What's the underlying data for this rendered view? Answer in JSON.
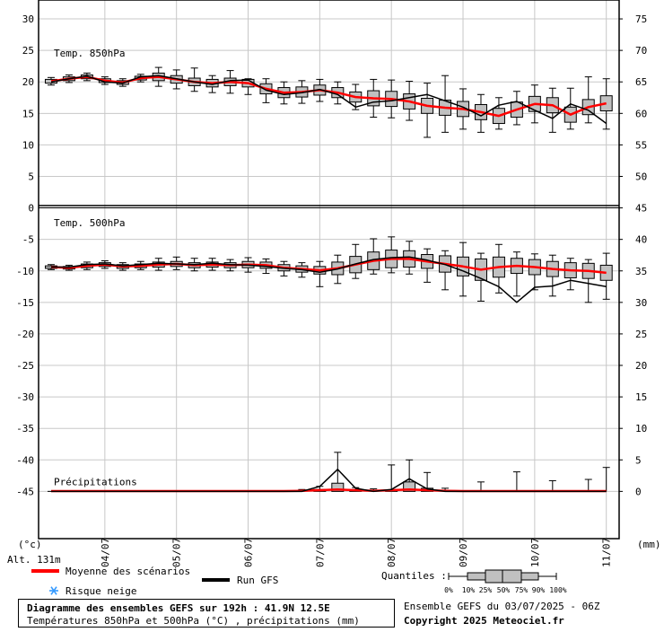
{
  "chart_data": {
    "type": "ensemble-boxplot",
    "title": "Diagramme des ensembles GEFS sur 192h : 41.9N 12.5E",
    "subtitle": "Températures 850hPa et 500hPa (°C) , précipitations (mm)",
    "run_info": "Ensemble GEFS du 03/07/2025 - 06Z",
    "copyright": "Copyright 2025 Meteociel.fr",
    "y_label": "(°c)",
    "y2_label": "(mm)",
    "altitude": "Alt. 131m",
    "legend": {
      "mean": "Moyenne des scénarios",
      "gfs": "Run GFS",
      "snow": "Risque neige",
      "quantiles_title": "Quantiles :",
      "quantiles": [
        "0%",
        "10%",
        "25%",
        "50%",
        "75%",
        "90%",
        "100%"
      ]
    },
    "mean_color": "#ff0000",
    "gfs_color": "#000000",
    "box_color": "#c0c0c0",
    "grid": true,
    "x": [
      0,
      6,
      12,
      18,
      24,
      30,
      36,
      42,
      48,
      54,
      60,
      66,
      72,
      78,
      84,
      90,
      96,
      102,
      108,
      114,
      120,
      126,
      132,
      138,
      144,
      150,
      156,
      162,
      168,
      174,
      180,
      186
    ],
    "xlim": [
      -4.2,
      190.3
    ],
    "xticks": [
      {
        "value": 18,
        "label": "04/07"
      },
      {
        "value": 42,
        "label": "05/07"
      },
      {
        "value": 66,
        "label": "06/07"
      },
      {
        "value": 90,
        "label": "07/07"
      },
      {
        "value": 114,
        "label": "08/07"
      },
      {
        "value": 138,
        "label": "09/07"
      },
      {
        "value": 162,
        "label": "10/07"
      },
      {
        "value": 186,
        "label": "11/07"
      }
    ],
    "ylim": [
      -52.5,
      33
    ],
    "yticks": [
      -45,
      -40,
      -35,
      -30,
      -25,
      -20,
      -15,
      -10,
      -5,
      0,
      5,
      10,
      15,
      20,
      25,
      30
    ],
    "y2lim": [
      -7.5,
      78
    ],
    "y2ticks": [
      0,
      5,
      10,
      15,
      20,
      25,
      30,
      35,
      40,
      45,
      50,
      55,
      60,
      65,
      70,
      75
    ],
    "panels": [
      {
        "label": "Temp. 850hPa",
        "axis": "y",
        "mean": [
          20.1,
          20.5,
          20.8,
          20.2,
          19.9,
          20.6,
          20.8,
          20.4,
          20.0,
          19.8,
          20.0,
          19.8,
          18.9,
          18.3,
          18.4,
          18.7,
          18.3,
          17.6,
          17.4,
          17.3,
          16.9,
          16.2,
          15.9,
          15.7,
          15.2,
          14.6,
          15.6,
          16.5,
          16.3,
          14.8,
          16.0,
          16.6
        ],
        "gfs": [
          20.0,
          20.5,
          20.9,
          20.0,
          19.8,
          20.8,
          21.0,
          20.5,
          20.0,
          19.6,
          20.2,
          20.3,
          18.7,
          18.0,
          18.3,
          18.8,
          18.0,
          16.0,
          16.8,
          17.0,
          17.5,
          18.0,
          17.0,
          16.0,
          14.6,
          16.3,
          16.9,
          15.5,
          14.2,
          16.5,
          15.5,
          13.4
        ],
        "min": [
          19.5,
          19.9,
          20.2,
          19.6,
          19.3,
          20.0,
          19.3,
          18.9,
          18.5,
          18.3,
          18.2,
          18.0,
          16.7,
          16.5,
          16.6,
          16.9,
          16.5,
          15.6,
          14.4,
          14.3,
          13.9,
          11.2,
          12.0,
          12.5,
          12.0,
          12.5,
          13.2,
          13.5,
          12.0,
          12.5,
          13.5,
          12.5
        ],
        "q25": [
          19.8,
          20.2,
          20.5,
          19.9,
          19.6,
          20.3,
          20.2,
          19.8,
          19.4,
          19.2,
          19.4,
          19.2,
          18.1,
          17.5,
          17.6,
          17.9,
          17.5,
          16.8,
          16.2,
          16.1,
          15.7,
          15.0,
          14.7,
          14.5,
          14.0,
          13.4,
          14.4,
          15.3,
          15.1,
          13.6,
          14.8,
          15.4
        ],
        "q75": [
          20.4,
          20.8,
          21.1,
          20.5,
          20.2,
          20.9,
          21.4,
          21.0,
          20.6,
          20.4,
          20.6,
          20.4,
          19.7,
          19.1,
          19.2,
          19.5,
          19.1,
          18.4,
          18.6,
          18.5,
          18.1,
          17.4,
          17.1,
          16.9,
          16.4,
          15.8,
          16.8,
          17.7,
          17.5,
          16.0,
          17.2,
          17.8
        ],
        "max": [
          20.7,
          21.1,
          21.4,
          20.8,
          20.5,
          21.2,
          22.3,
          21.9,
          22.2,
          21.0,
          21.8,
          20.5,
          20.5,
          20.0,
          20.2,
          20.4,
          20.0,
          19.6,
          20.4,
          20.3,
          20.1,
          19.8,
          21.0,
          18.9,
          18.0,
          17.5,
          18.5,
          19.5,
          19.0,
          19.0,
          20.8,
          20.5
        ]
      },
      {
        "label": "Temp. 500hPa",
        "axis": "y",
        "mean": [
          -9.4,
          -9.5,
          -9.2,
          -9.0,
          -9.3,
          -9.2,
          -9.0,
          -8.9,
          -9.1,
          -9.0,
          -9.1,
          -9.0,
          -9.1,
          -9.5,
          -9.7,
          -9.9,
          -9.6,
          -9.0,
          -8.4,
          -8.1,
          -8.1,
          -8.5,
          -8.9,
          -9.3,
          -9.8,
          -9.4,
          -9.2,
          -9.4,
          -9.7,
          -9.9,
          -10.0,
          -10.3
        ],
        "gfs": [
          -9.4,
          -9.4,
          -9.0,
          -8.9,
          -9.2,
          -9.0,
          -8.8,
          -8.9,
          -9.0,
          -8.8,
          -9.0,
          -9.1,
          -9.3,
          -9.6,
          -9.8,
          -10.2,
          -9.7,
          -8.9,
          -8.2,
          -7.9,
          -7.8,
          -8.3,
          -9.0,
          -10.0,
          -11.2,
          -12.5,
          -15.0,
          -12.6,
          -12.4,
          -11.5,
          -12.0,
          -12.5
        ],
        "min": [
          -9.8,
          -9.9,
          -9.8,
          -9.6,
          -9.9,
          -9.8,
          -9.9,
          -9.8,
          -10.0,
          -9.9,
          -10.0,
          -10.2,
          -10.4,
          -10.8,
          -11.0,
          -12.5,
          -12.0,
          -11.2,
          -10.5,
          -10.3,
          -10.5,
          -11.8,
          -13.0,
          -14.0,
          -14.8,
          -13.5,
          -14.0,
          -13.0,
          -14.0,
          -13.0,
          -15.0,
          -14.5
        ],
        "q25": [
          -9.6,
          -9.7,
          -9.5,
          -9.3,
          -9.6,
          -9.5,
          -9.4,
          -9.3,
          -9.5,
          -9.4,
          -9.5,
          -9.5,
          -9.6,
          -10.0,
          -10.2,
          -10.5,
          -10.6,
          -10.3,
          -9.8,
          -9.5,
          -9.4,
          -9.6,
          -10.2,
          -10.8,
          -11.5,
          -11.0,
          -10.4,
          -10.6,
          -10.9,
          -11.1,
          -11.2,
          -11.5
        ],
        "q75": [
          -9.2,
          -9.3,
          -8.9,
          -8.7,
          -9.0,
          -8.9,
          -8.6,
          -8.5,
          -8.7,
          -8.6,
          -8.7,
          -8.5,
          -8.6,
          -9.0,
          -9.2,
          -9.3,
          -8.6,
          -7.7,
          -7.0,
          -6.7,
          -6.8,
          -7.4,
          -7.6,
          -7.8,
          -8.1,
          -7.8,
          -8.0,
          -8.2,
          -8.5,
          -8.7,
          -8.8,
          -9.1
        ],
        "max": [
          -9.0,
          -9.1,
          -8.6,
          -8.4,
          -8.7,
          -8.5,
          -8.0,
          -7.8,
          -8.0,
          -8.0,
          -8.2,
          -7.9,
          -8.1,
          -8.5,
          -8.7,
          -8.5,
          -7.5,
          -5.8,
          -4.9,
          -4.6,
          -5.3,
          -6.5,
          -6.8,
          -5.5,
          -7.2,
          -5.8,
          -7.0,
          -7.3,
          -7.5,
          -8.0,
          -8.2,
          -7.2
        ]
      },
      {
        "label": "Précipitations",
        "axis": "y2",
        "mean": [
          0.05,
          0.05,
          0.05,
          0.05,
          0.05,
          0.05,
          0.05,
          0.05,
          0.05,
          0.05,
          0.05,
          0.05,
          0.05,
          0.05,
          0.1,
          0.2,
          0.3,
          0.2,
          0.1,
          0.2,
          0.3,
          0.2,
          0.1,
          0.05,
          0.05,
          0.05,
          0.05,
          0.05,
          0.05,
          0.05,
          0.05,
          0.05
        ],
        "gfs": [
          0,
          0,
          0,
          0,
          0,
          0,
          0,
          0,
          0,
          0,
          0,
          0,
          0,
          0,
          0,
          0.8,
          3.5,
          0.5,
          0,
          0.3,
          2.0,
          0.4,
          0,
          0,
          0,
          0,
          0,
          0,
          0,
          0,
          0,
          0
        ],
        "q75": [
          0,
          0,
          0,
          0,
          0,
          0,
          0,
          0,
          0,
          0,
          0,
          0,
          0,
          0,
          0,
          0.3,
          1.3,
          0.2,
          0,
          0.2,
          1.5,
          0.5,
          0,
          0,
          0,
          0,
          0,
          0,
          0,
          0,
          0,
          0
        ],
        "max": [
          0,
          0,
          0,
          0,
          0,
          0,
          0,
          0,
          0,
          0,
          0,
          0,
          0,
          0,
          0.3,
          0.8,
          6.2,
          0.6,
          0.4,
          4.2,
          5.0,
          3.0,
          0.5,
          0,
          1.5,
          0,
          3.1,
          0,
          1.7,
          0,
          1.9,
          3.8
        ]
      }
    ]
  }
}
